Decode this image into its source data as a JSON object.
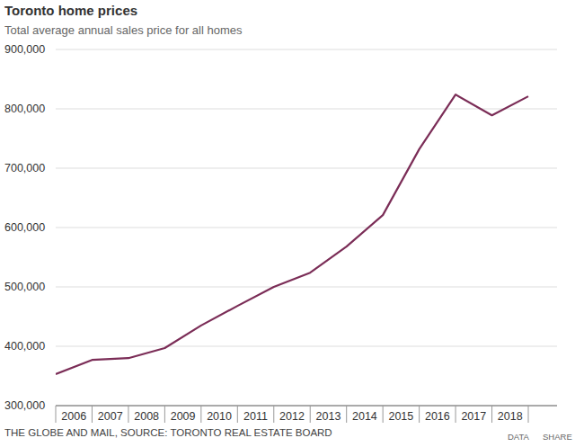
{
  "chart_data": {
    "type": "line",
    "title": "Toronto home prices",
    "subtitle": "Total average annual sales price for all homes",
    "source": "THE GLOBE AND MAIL, SOURCE: TORONTO REAL ESTATE BOARD",
    "links": [
      "DATA",
      "SHARE"
    ],
    "categories": [
      "2006",
      "2007",
      "2008",
      "2009",
      "2010",
      "2011",
      "2012",
      "2013",
      "2014",
      "2015",
      "2016",
      "2017",
      "2018",
      null
    ],
    "values": [
      353000,
      377000,
      380000,
      397000,
      435000,
      468000,
      500000,
      524000,
      568000,
      621000,
      732000,
      824000,
      789000,
      821000
    ],
    "color": "#7b2d57",
    "ylim": [
      300000,
      900000
    ],
    "yticks": [
      {
        "value": 300000,
        "label": "300,000"
      },
      {
        "value": 400000,
        "label": "400,000"
      },
      {
        "value": 500000,
        "label": "500,000"
      },
      {
        "value": 600000,
        "label": "600,000"
      },
      {
        "value": 700000,
        "label": "700,000"
      },
      {
        "value": 800000,
        "label": "800,000"
      },
      {
        "value": 900000,
        "label": "900,000"
      }
    ],
    "grid": true
  }
}
